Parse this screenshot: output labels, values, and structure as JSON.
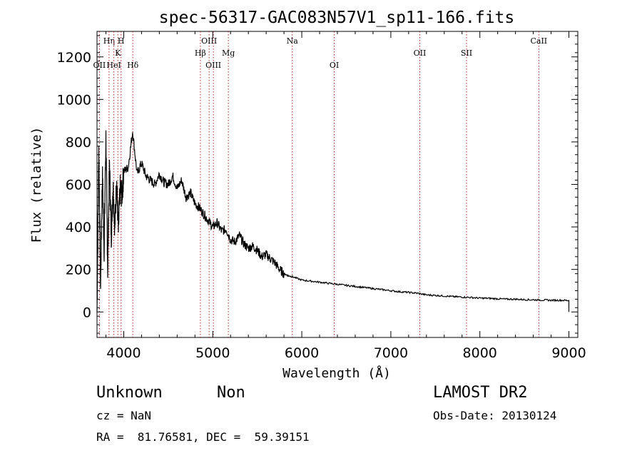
{
  "chart_data": {
    "type": "line",
    "title": "spec-56317-GAC083N57V1_sp11-166.fits",
    "xlabel": "Wavelength (Å)",
    "ylabel": "Flux (relative)",
    "xlim": [
      3700,
      9100
    ],
    "ylim": [
      -120,
      1320
    ],
    "xticks": [
      4000,
      5000,
      6000,
      7000,
      8000,
      9000
    ],
    "xtick_labels": [
      "4000",
      "5000",
      "6000",
      "7000",
      "8000",
      "9000"
    ],
    "yticks": [
      0,
      200,
      400,
      600,
      800,
      1000,
      1200
    ],
    "ytick_labels": [
      "0",
      "200",
      "400",
      "600",
      "800",
      "1000",
      "1200"
    ],
    "grid": false,
    "series": [
      {
        "x": [
          3700,
          3720,
          3740,
          3760,
          3780,
          3800,
          3820,
          3840,
          3860,
          3880,
          3900,
          3920,
          3940,
          3960,
          3980,
          4000,
          4050,
          4100,
          4150,
          4200,
          4250,
          4300,
          4350,
          4400,
          4450,
          4500,
          4550,
          4600,
          4650,
          4700,
          4750,
          4800,
          4850,
          4900,
          4950,
          5000,
          5050,
          5100,
          5150,
          5200,
          5250,
          5300,
          5350,
          5400,
          5450,
          5500,
          5550,
          5600,
          5650,
          5700,
          5750,
          5800,
          5850,
          5900,
          6000,
          6100,
          6200,
          6300,
          6400,
          6500,
          6600,
          6700,
          6800,
          6900,
          7000,
          7100,
          7200,
          7300,
          7400,
          7500,
          7600,
          7700,
          7800,
          7900,
          8000,
          8100,
          8200,
          8300,
          8400,
          8500,
          8600,
          8700,
          8800,
          8900,
          9000
        ],
        "y": [
          0,
          780,
          120,
          650,
          300,
          820,
          200,
          700,
          350,
          600,
          400,
          620,
          380,
          580,
          550,
          660,
          680,
          850,
          650,
          700,
          640,
          620,
          600,
          650,
          610,
          600,
          640,
          580,
          620,
          540,
          560,
          510,
          490,
          460,
          430,
          400,
          420,
          380,
          390,
          340,
          330,
          360,
          320,
          300,
          310,
          290,
          260,
          270,
          250,
          230,
          200,
          180,
          170,
          165,
          150,
          145,
          140,
          135,
          130,
          125,
          120,
          115,
          110,
          105,
          100,
          95,
          92,
          88,
          80,
          78,
          75,
          72,
          70,
          68,
          65,
          64,
          62,
          60,
          60,
          58,
          57,
          56,
          55,
          55,
          54
        ]
      }
    ],
    "lines": [
      {
        "wl": 3727,
        "label": "OII",
        "row": 3
      },
      {
        "wl": 3835,
        "label": "Hη",
        "row": 1
      },
      {
        "wl": 3889,
        "label": "HeI",
        "row": 3
      },
      {
        "wl": 3934,
        "label": "K",
        "row": 2
      },
      {
        "wl": 3970,
        "label": "H",
        "row": 1
      },
      {
        "wl": 4102,
        "label": "Hδ",
        "row": 3
      },
      {
        "wl": 4861,
        "label": "Hβ",
        "row": 2
      },
      {
        "wl": 4959,
        "label": "OIII",
        "row": 1
      },
      {
        "wl": 5007,
        "label": "OIII",
        "row": 3
      },
      {
        "wl": 5175,
        "label": "Mg",
        "row": 2
      },
      {
        "wl": 5893,
        "label": "Na",
        "row": 1
      },
      {
        "wl": 6364,
        "label": "OI",
        "row": 3
      },
      {
        "wl": 7325,
        "label": "OII",
        "row": 2
      },
      {
        "wl": 7850,
        "label": "SII",
        "row": 2
      },
      {
        "wl": 8662,
        "label": "CaII",
        "row": 1
      }
    ]
  },
  "info": {
    "object_class": "Unknown",
    "subclass": "Non",
    "survey": "LAMOST DR2",
    "cz": "cz = NaN",
    "obs_date": "Obs-Date: 20130124",
    "coords": "RA =  81.76581, DEC =  59.39151"
  }
}
